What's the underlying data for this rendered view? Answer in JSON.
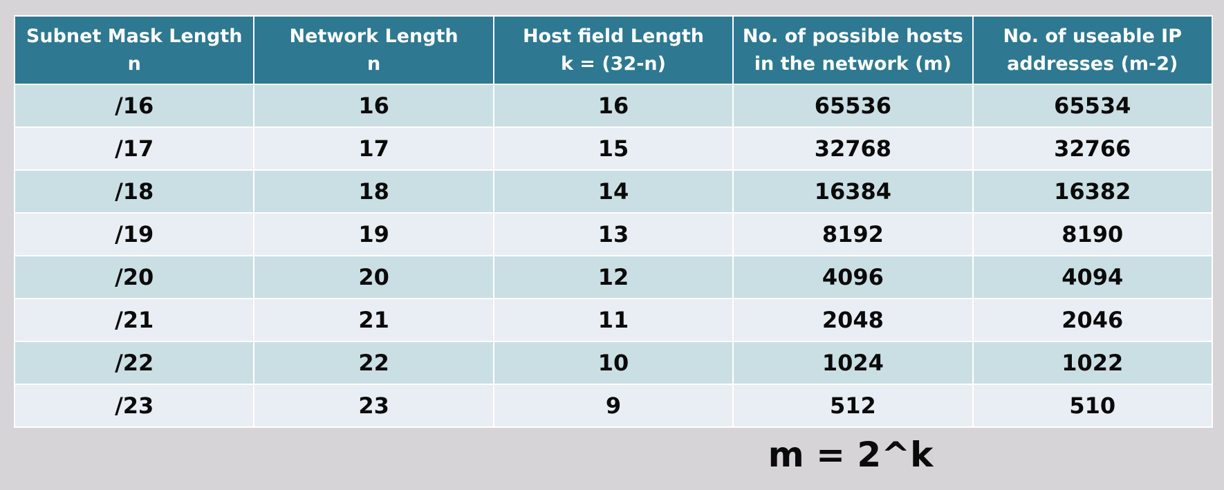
{
  "table": {
    "headers": [
      {
        "line1": "Subnet Mask Length",
        "line2": "n"
      },
      {
        "line1": "Network Length",
        "line2": "n"
      },
      {
        "line1": "Host field Length",
        "line2": "k = (32-n)"
      },
      {
        "line1": "No. of possible hosts",
        "line2": "in the network (m)"
      },
      {
        "line1": "No. of useable IP",
        "line2": "addresses (m-2)"
      }
    ],
    "rows": [
      [
        "/16",
        "16",
        "16",
        "65536",
        "65534"
      ],
      [
        "/17",
        "17",
        "15",
        "32768",
        "32766"
      ],
      [
        "/18",
        "18",
        "14",
        "16384",
        "16382"
      ],
      [
        "/19",
        "19",
        "13",
        "8192",
        "8190"
      ],
      [
        "/20",
        "20",
        "12",
        "4096",
        "4094"
      ],
      [
        "/21",
        "21",
        "11",
        "2048",
        "2046"
      ],
      [
        "/22",
        "22",
        "10",
        "1024",
        "1022"
      ],
      [
        "/23",
        "23",
        "9",
        "512",
        "510"
      ]
    ]
  },
  "formula": "m = 2^k",
  "colors": {
    "header_bg": "#2e7891",
    "row_odd": "#cadfe4",
    "row_even": "#e8eef3",
    "page_bg": "#d6d4d7"
  }
}
